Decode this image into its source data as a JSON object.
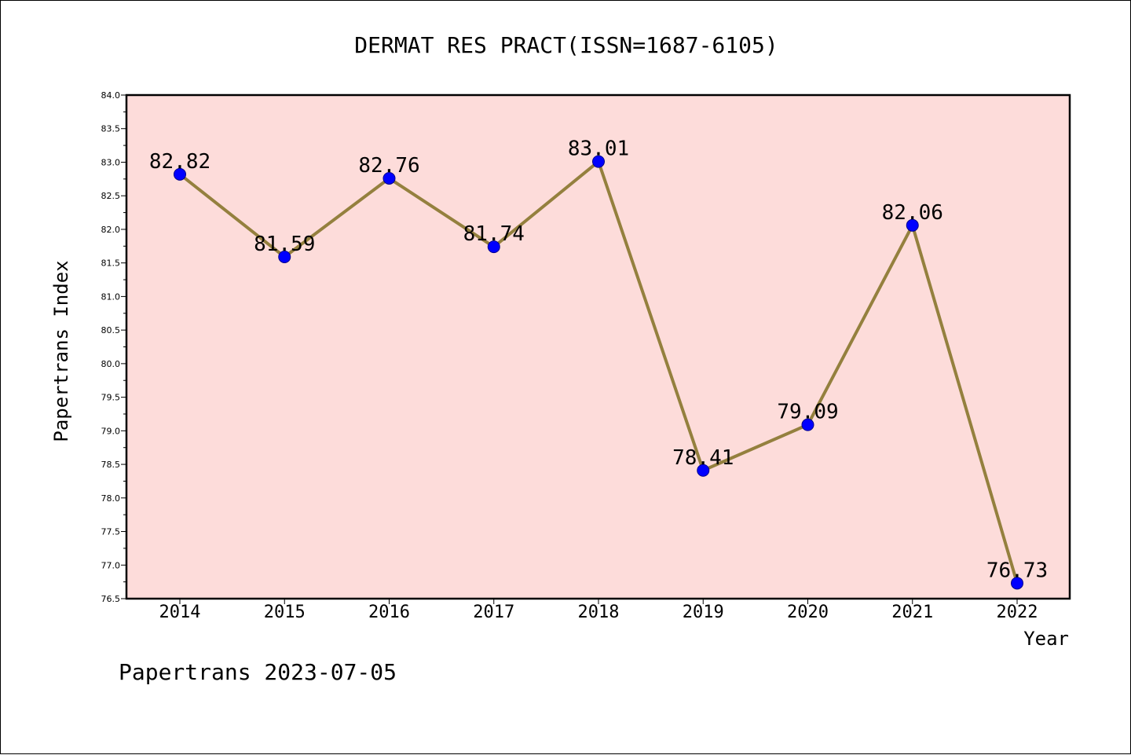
{
  "chart_data": {
    "type": "line",
    "title": "DERMAT RES PRACT(ISSN=1687-6105)",
    "xlabel": "Year",
    "ylabel": "Papertrans Index",
    "categories": [
      "2014",
      "2015",
      "2016",
      "2017",
      "2018",
      "2019",
      "2020",
      "2021",
      "2022"
    ],
    "values": [
      82.82,
      81.59,
      82.76,
      81.74,
      83.01,
      78.41,
      79.09,
      82.06,
      76.73
    ],
    "data_labels": [
      "82.82",
      "81.59",
      "82.76",
      "81.74",
      "83.01",
      "78.41",
      "79.09",
      "82.06",
      "76.73"
    ],
    "ylim": [
      76.5,
      84.0
    ],
    "yticks": [
      "76.5",
      "77.0",
      "77.5",
      "78.0",
      "78.5",
      "79.0",
      "79.5",
      "80.0",
      "80.5",
      "81.0",
      "81.5",
      "82.0",
      "82.5",
      "83.0",
      "83.5",
      "84.0"
    ],
    "grid": false,
    "legend": "none",
    "colors": {
      "plot_background": "#FDDCDA",
      "line": "#94803E",
      "marker": "#0000FF",
      "marker_edge": "#00008B"
    }
  },
  "footer": "Papertrans 2023-07-05"
}
